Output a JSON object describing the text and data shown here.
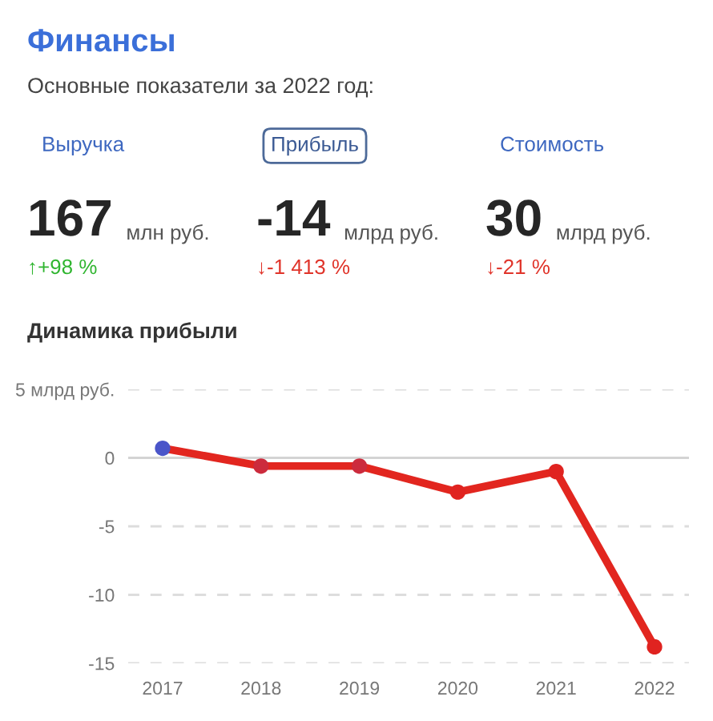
{
  "chart_data": [
    {
      "type": "other",
      "title": "Финансы",
      "subtitle": "Основные показатели за 2022 год:",
      "categories": [
        "Выручка",
        "Прибыль",
        "Стоимость"
      ],
      "values": [
        167,
        -14,
        30
      ],
      "data_labels": true,
      "annotations": [
        "млн руб.",
        "↑+98 %",
        "млрд руб.",
        "↓-1 413 %",
        "млрд руб.",
        "↓-21 %"
      ]
    },
    {
      "type": "line",
      "title": "Динамика прибыли",
      "categories": [
        "2017",
        "2018",
        "2019",
        "2020",
        "2021",
        "2022"
      ],
      "series": [
        {
          "color": "#e2261f",
          "values": [
            0.7,
            -0.6,
            -0.6,
            -2.5,
            -1.0,
            -13.8
          ]
        }
      ],
      "colors": [
        "#4a55c9",
        "#cc2b3d",
        "#cc2b3d",
        "#e02320",
        "#e02320",
        "#e02320"
      ],
      "marker": "circle",
      "line_style": "solid",
      "ylim": [
        -15,
        5
      ],
      "yticks": [
        {
          "value": 5,
          "label": "5 млрд руб."
        },
        0,
        -5,
        -10,
        -15
      ],
      "grid": "y"
    }
  ]
}
